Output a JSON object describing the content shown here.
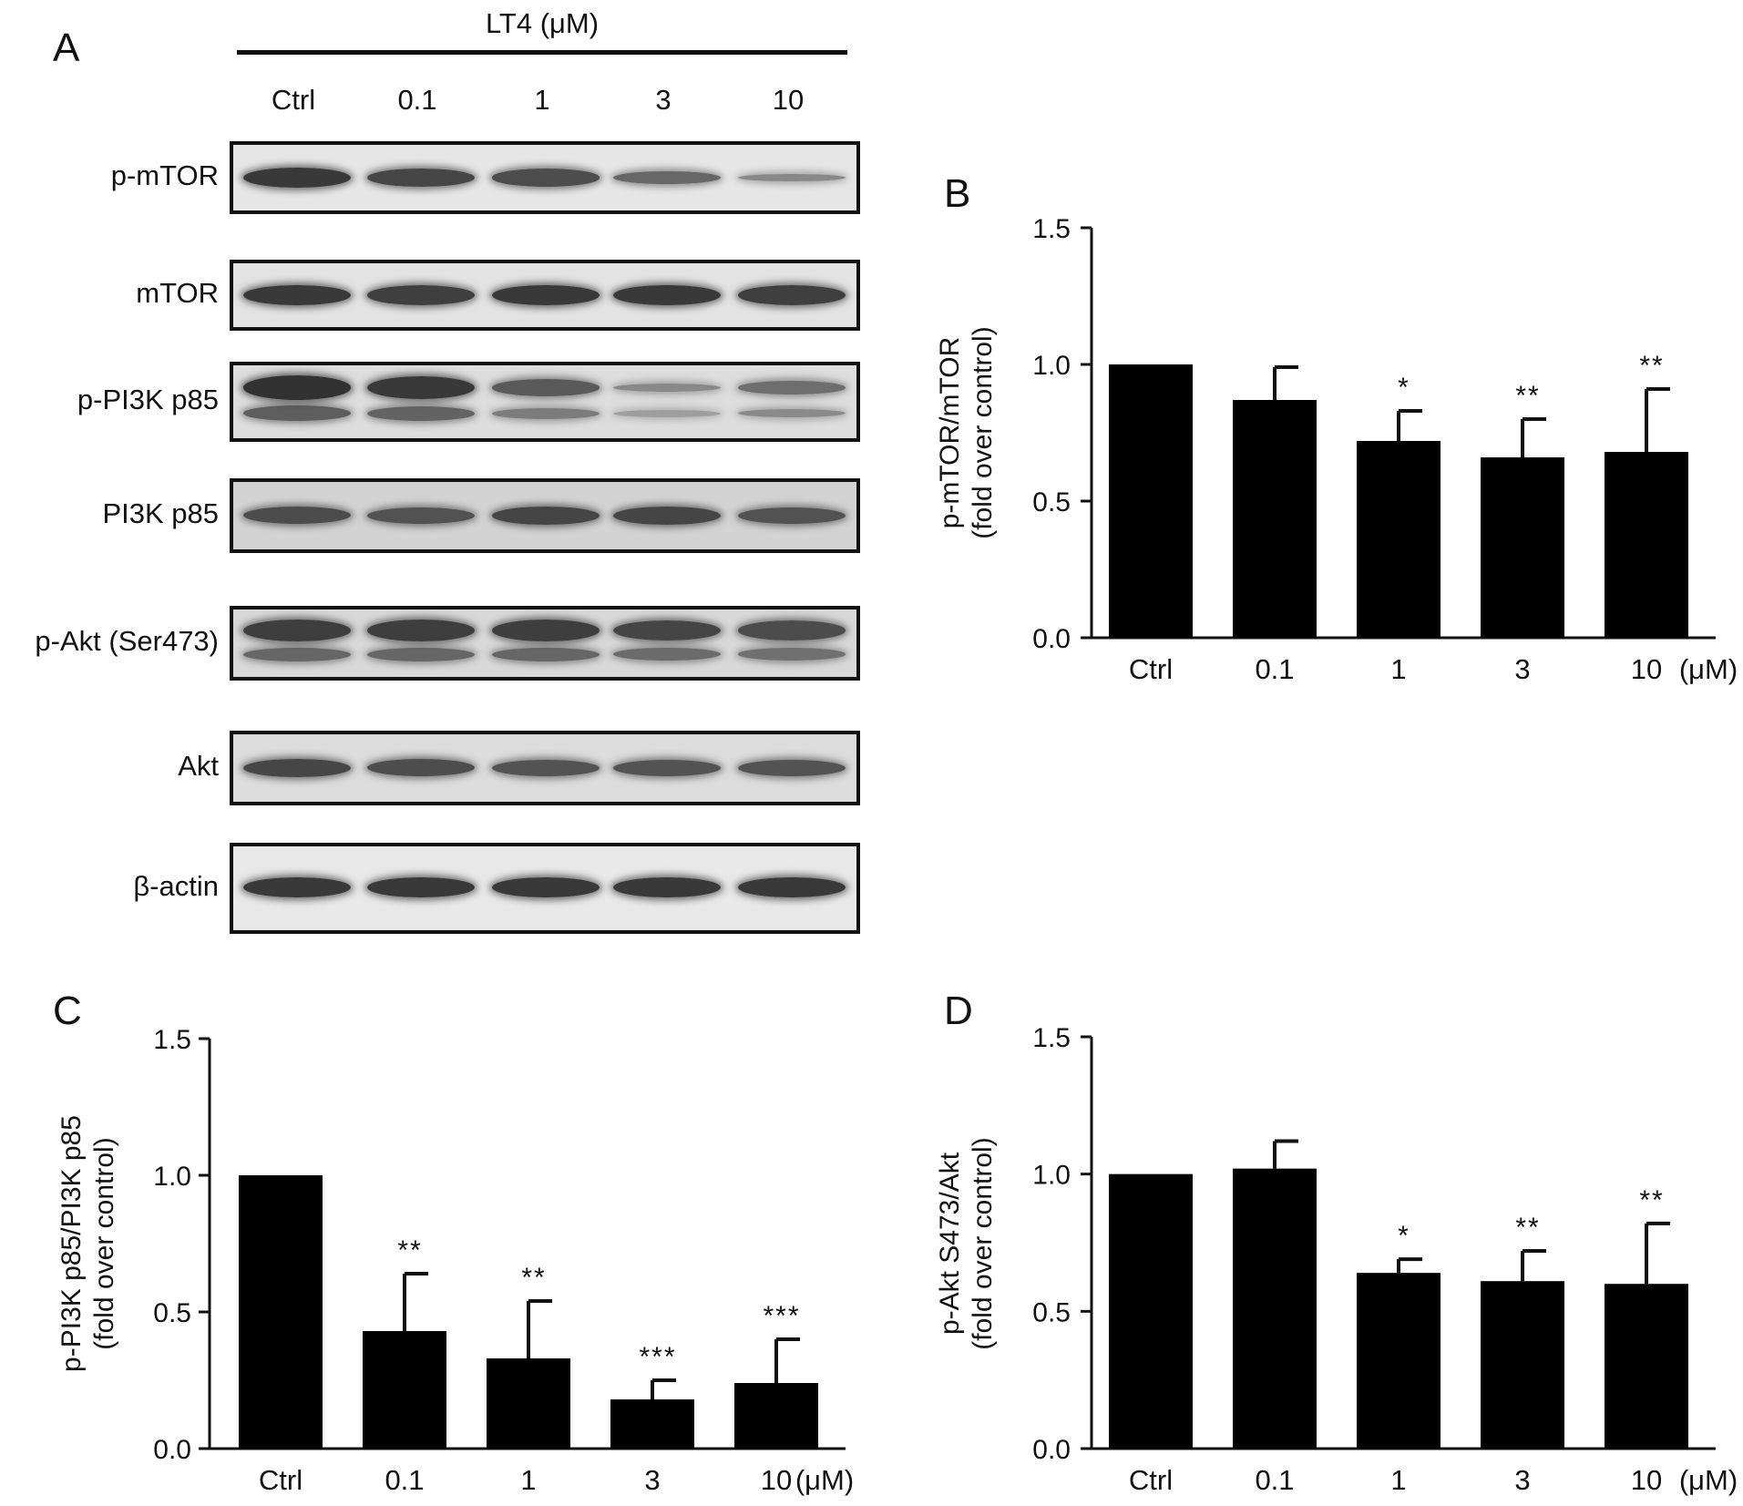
{
  "panel_letters": {
    "a": "A",
    "b": "B",
    "c": "C",
    "d": "D"
  },
  "western_blot": {
    "treatment_title": "LT4 (μM)",
    "lanes": [
      "Ctrl",
      "0.1",
      "1",
      "3",
      "10"
    ],
    "blots": [
      {
        "label": "p-mTOR",
        "band_intensity": [
          0.95,
          0.85,
          0.8,
          0.6,
          0.35
        ],
        "background": "#e6e6e6"
      },
      {
        "label": "mTOR",
        "band_intensity": [
          0.95,
          0.9,
          0.95,
          0.95,
          0.9
        ],
        "background": "#e3e3e3"
      },
      {
        "label": "p-PI3K p85",
        "band_intensity": [
          1.0,
          0.95,
          0.7,
          0.35,
          0.55
        ],
        "background": "#dddddd",
        "double_band": true
      },
      {
        "label": "PI3K p85",
        "band_intensity": [
          0.8,
          0.75,
          0.85,
          0.85,
          0.75
        ],
        "background": "#d3d3d3"
      },
      {
        "label": "p-Akt (Ser473)",
        "band_intensity": [
          0.9,
          0.9,
          0.9,
          0.85,
          0.8
        ],
        "background": "#d8d8d8",
        "double_band": true
      },
      {
        "label": "Akt",
        "band_intensity": [
          0.85,
          0.8,
          0.75,
          0.75,
          0.75
        ],
        "background": "#dcdcdc"
      },
      {
        "label": "β-actin",
        "band_intensity": [
          0.95,
          0.95,
          0.95,
          0.95,
          0.95
        ],
        "background": "#e8e8e8"
      }
    ]
  },
  "chart_data": [
    {
      "panel": "B",
      "type": "bar",
      "categories": [
        "Ctrl",
        "0.1",
        "1",
        "3",
        "10"
      ],
      "values": [
        1.0,
        0.87,
        0.72,
        0.66,
        0.68
      ],
      "errors": [
        0,
        0.12,
        0.11,
        0.14,
        0.23
      ],
      "significance": [
        "",
        "",
        "*",
        "**",
        "**"
      ],
      "ylabel": [
        "p-mTOR/mTOR",
        "(fold over control)"
      ],
      "unit_label": "(μM)",
      "ylim": [
        0,
        1.5
      ],
      "yticks": [
        "0.0",
        "0.5",
        "1.0",
        "1.5"
      ],
      "bar_color": "#000000"
    },
    {
      "panel": "C",
      "type": "bar",
      "categories": [
        "Ctrl",
        "0.1",
        "1",
        "3",
        "10"
      ],
      "values": [
        1.0,
        0.43,
        0.33,
        0.18,
        0.24
      ],
      "errors": [
        0,
        0.21,
        0.21,
        0.07,
        0.16
      ],
      "significance": [
        "",
        "**",
        "**",
        "***",
        "***"
      ],
      "ylabel": [
        "p-PI3K p85/PI3K p85",
        "(fold over control)"
      ],
      "unit_label": "(μM)",
      "ylim": [
        0,
        1.5
      ],
      "yticks": [
        "0.0",
        "0.5",
        "1.0",
        "1.5"
      ],
      "bar_color": "#000000"
    },
    {
      "panel": "D",
      "type": "bar",
      "categories": [
        "Ctrl",
        "0.1",
        "1",
        "3",
        "10"
      ],
      "values": [
        1.0,
        1.02,
        0.64,
        0.61,
        0.6
      ],
      "errors": [
        0,
        0.1,
        0.05,
        0.11,
        0.22
      ],
      "significance": [
        "",
        "",
        "*",
        "**",
        "**"
      ],
      "ylabel": [
        "p-Akt S473/Akt",
        "(fold over control)"
      ],
      "unit_label": "(μM)",
      "ylim": [
        0,
        1.5
      ],
      "yticks": [
        "0.0",
        "0.5",
        "1.0",
        "1.5"
      ],
      "bar_color": "#000000"
    }
  ]
}
